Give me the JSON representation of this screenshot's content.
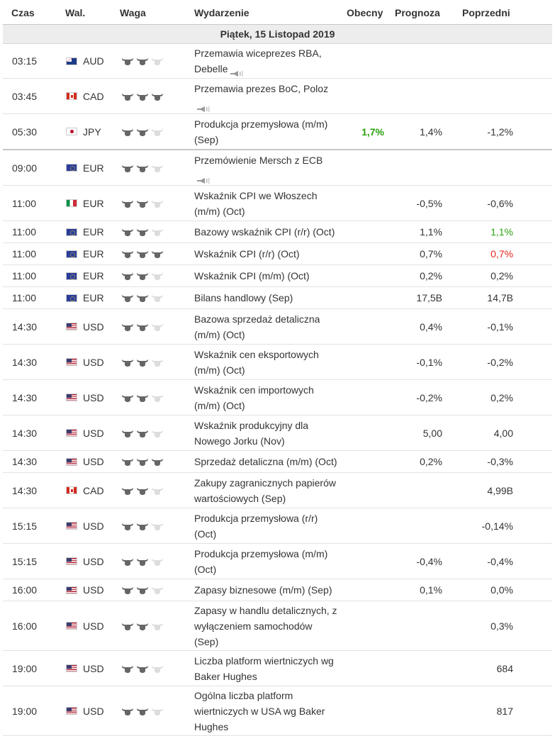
{
  "headers": {
    "time": "Czas",
    "currency": "Wal.",
    "importance": "Waga",
    "event": "Wydarzenie",
    "actual": "Obecny",
    "forecast": "Prognoza",
    "previous": "Poprzedni"
  },
  "day_label": "Piątek, 15 Listopad 2019",
  "colors": {
    "positive": "#2aa10f",
    "negative": "#e8231c",
    "bull_active": "#666666",
    "bull_inactive": "#dddddd"
  },
  "events": [
    {
      "time": "03:15",
      "flag": "aud",
      "currency": "AUD",
      "importance": 2,
      "event_lines": [
        "Przemawia wiceprezes RBA,",
        "Debelle"
      ],
      "speech": true,
      "actual": "",
      "forecast": "",
      "previous": "",
      "prev_style": ""
    },
    {
      "time": "03:45",
      "flag": "cad",
      "currency": "CAD",
      "importance": 3,
      "event_lines": [
        "Przemawia prezes BoC, Poloz"
      ],
      "speech": true,
      "actual": "",
      "forecast": "",
      "previous": "",
      "prev_style": ""
    },
    {
      "time": "05:30",
      "flag": "jpy",
      "currency": "JPY",
      "importance": 2,
      "event_lines": [
        "Produkcja przemysłowa (m/m)",
        "(Sep)"
      ],
      "speech": false,
      "actual": "1,7%",
      "forecast": "1,4%",
      "previous": "-1,2%",
      "prev_style": ""
    },
    {
      "time": "09:00",
      "flag": "eur",
      "currency": "EUR",
      "importance": 2,
      "event_lines": [
        "Przemówienie Mersch z ECB"
      ],
      "speech": true,
      "actual": "",
      "forecast": "",
      "previous": "",
      "prev_style": ""
    },
    {
      "time": "11:00",
      "flag": "ita",
      "currency": "EUR",
      "importance": 2,
      "event_lines": [
        "Wskaźnik CPI we Włoszech",
        "(m/m) (Oct)"
      ],
      "speech": false,
      "actual": "",
      "forecast": "-0,5%",
      "previous": "-0,6%",
      "prev_style": ""
    },
    {
      "time": "11:00",
      "flag": "eur",
      "currency": "EUR",
      "importance": 2,
      "event_lines": [
        "Bazowy wskaźnik CPI (r/r) (Oct)"
      ],
      "speech": false,
      "actual": "",
      "forecast": "1,1%",
      "previous": "1,1%",
      "prev_style": "green"
    },
    {
      "time": "11:00",
      "flag": "eur",
      "currency": "EUR",
      "importance": 3,
      "event_lines": [
        "Wskaźnik CPI (r/r) (Oct)"
      ],
      "speech": false,
      "actual": "",
      "forecast": "0,7%",
      "previous": "0,7%",
      "prev_style": "red"
    },
    {
      "time": "11:00",
      "flag": "eur",
      "currency": "EUR",
      "importance": 2,
      "event_lines": [
        "Wskaźnik CPI (m/m) (Oct)"
      ],
      "speech": false,
      "actual": "",
      "forecast": "0,2%",
      "previous": "0,2%",
      "prev_style": ""
    },
    {
      "time": "11:00",
      "flag": "eur",
      "currency": "EUR",
      "importance": 2,
      "event_lines": [
        "Bilans handlowy (Sep)"
      ],
      "speech": false,
      "actual": "",
      "forecast": "17,5B",
      "previous": "14,7B",
      "prev_style": ""
    },
    {
      "time": "14:30",
      "flag": "usd",
      "currency": "USD",
      "importance": 2,
      "event_lines": [
        "Bazowa sprzedaż detaliczna",
        "(m/m) (Oct)"
      ],
      "speech": false,
      "actual": "",
      "forecast": "0,4%",
      "previous": "-0,1%",
      "prev_style": ""
    },
    {
      "time": "14:30",
      "flag": "usd",
      "currency": "USD",
      "importance": 2,
      "event_lines": [
        "Wskaźnik cen eksportowych",
        "(m/m) (Oct)"
      ],
      "speech": false,
      "actual": "",
      "forecast": "-0,1%",
      "previous": "-0,2%",
      "prev_style": ""
    },
    {
      "time": "14:30",
      "flag": "usd",
      "currency": "USD",
      "importance": 2,
      "event_lines": [
        "Wskaźnik cen importowych",
        "(m/m) (Oct)"
      ],
      "speech": false,
      "actual": "",
      "forecast": "-0,2%",
      "previous": "0,2%",
      "prev_style": ""
    },
    {
      "time": "14:30",
      "flag": "usd",
      "currency": "USD",
      "importance": 2,
      "event_lines": [
        "Wskaźnik produkcyjny dla",
        "Nowego Jorku (Nov)"
      ],
      "speech": false,
      "actual": "",
      "forecast": "5,00",
      "previous": "4,00",
      "prev_style": ""
    },
    {
      "time": "14:30",
      "flag": "usd",
      "currency": "USD",
      "importance": 3,
      "event_lines": [
        "Sprzedaż detaliczna (m/m) (Oct)"
      ],
      "speech": false,
      "actual": "",
      "forecast": "0,2%",
      "previous": "-0,3%",
      "prev_style": ""
    },
    {
      "time": "14:30",
      "flag": "cad",
      "currency": "CAD",
      "importance": 2,
      "event_lines": [
        "Zakupy zagranicznych papierów",
        "wartościowych (Sep)"
      ],
      "speech": false,
      "actual": "",
      "forecast": "",
      "previous": "4,99B",
      "prev_style": ""
    },
    {
      "time": "15:15",
      "flag": "usd",
      "currency": "USD",
      "importance": 2,
      "event_lines": [
        "Produkcja przemysłowa (r/r)",
        "(Oct)"
      ],
      "speech": false,
      "actual": "",
      "forecast": "",
      "previous": "-0,14%",
      "prev_style": ""
    },
    {
      "time": "15:15",
      "flag": "usd",
      "currency": "USD",
      "importance": 2,
      "event_lines": [
        "Produkcja przemysłowa (m/m)",
        "(Oct)"
      ],
      "speech": false,
      "actual": "",
      "forecast": "-0,4%",
      "previous": "-0,4%",
      "prev_style": ""
    },
    {
      "time": "16:00",
      "flag": "usd",
      "currency": "USD",
      "importance": 2,
      "event_lines": [
        "Zapasy biznesowe (m/m) (Sep)"
      ],
      "speech": false,
      "actual": "",
      "forecast": "0,1%",
      "previous": "0,0%",
      "prev_style": ""
    },
    {
      "time": "16:00",
      "flag": "usd",
      "currency": "USD",
      "importance": 2,
      "event_lines": [
        "Zapasy w handlu detalicznych, z",
        "wyłączeniem samochodów",
        "(Sep)"
      ],
      "speech": false,
      "actual": "",
      "forecast": "",
      "previous": "0,3%",
      "prev_style": ""
    },
    {
      "time": "19:00",
      "flag": "usd",
      "currency": "USD",
      "importance": 2,
      "event_lines": [
        "Liczba platform wiertniczych wg",
        "Baker Hughes"
      ],
      "speech": false,
      "actual": "",
      "forecast": "",
      "previous": "684",
      "prev_style": ""
    },
    {
      "time": "19:00",
      "flag": "usd",
      "currency": "USD",
      "importance": 2,
      "event_lines": [
        "Ogólna liczba platform",
        "wiertniczych w USA wg Baker",
        "Hughes"
      ],
      "speech": false,
      "actual": "",
      "forecast": "",
      "previous": "817",
      "prev_style": ""
    }
  ]
}
